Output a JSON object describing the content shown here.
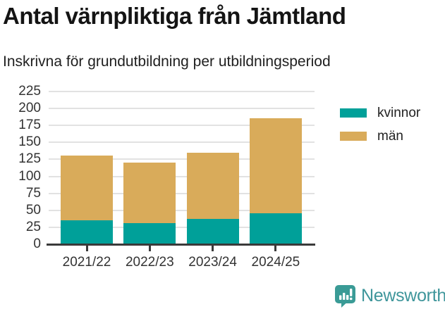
{
  "header": {
    "title": "Antal värnpliktiga från Jämtland",
    "subtitle": "Inskrivna för grundutbildning per utbildningsperiod"
  },
  "chart_data": {
    "type": "bar",
    "stacked": true,
    "title": "Antal värnpliktiga från Jämtland",
    "subtitle": "Inskrivna för grundutbildning per utbildningsperiod",
    "categories": [
      "2021/22",
      "2022/23",
      "2023/24",
      "2024/25"
    ],
    "series": [
      {
        "name": "kvinnor",
        "color": "#00a099",
        "values": [
          35,
          31,
          37,
          46
        ]
      },
      {
        "name": "män",
        "color": "#d9ab5a",
        "values": [
          96,
          89,
          98,
          140
        ]
      }
    ],
    "totals": [
      131,
      120,
      135,
      186
    ],
    "xlabel": "",
    "ylabel": "",
    "ylim": [
      0,
      225
    ],
    "ytick_step": 25,
    "yticks": [
      0,
      25,
      50,
      75,
      100,
      125,
      150,
      175,
      200,
      225
    ],
    "grid": true,
    "legend_position": "right"
  },
  "colors": {
    "axis": "#3a3a3a",
    "gridline": "#e2e2e2",
    "tick_text": "#333333"
  },
  "footer": {
    "brand": "Newsworthy",
    "brand_color": "#3f969b",
    "brand_icon": "newsworthy-bar-chart-bubble-icon"
  }
}
